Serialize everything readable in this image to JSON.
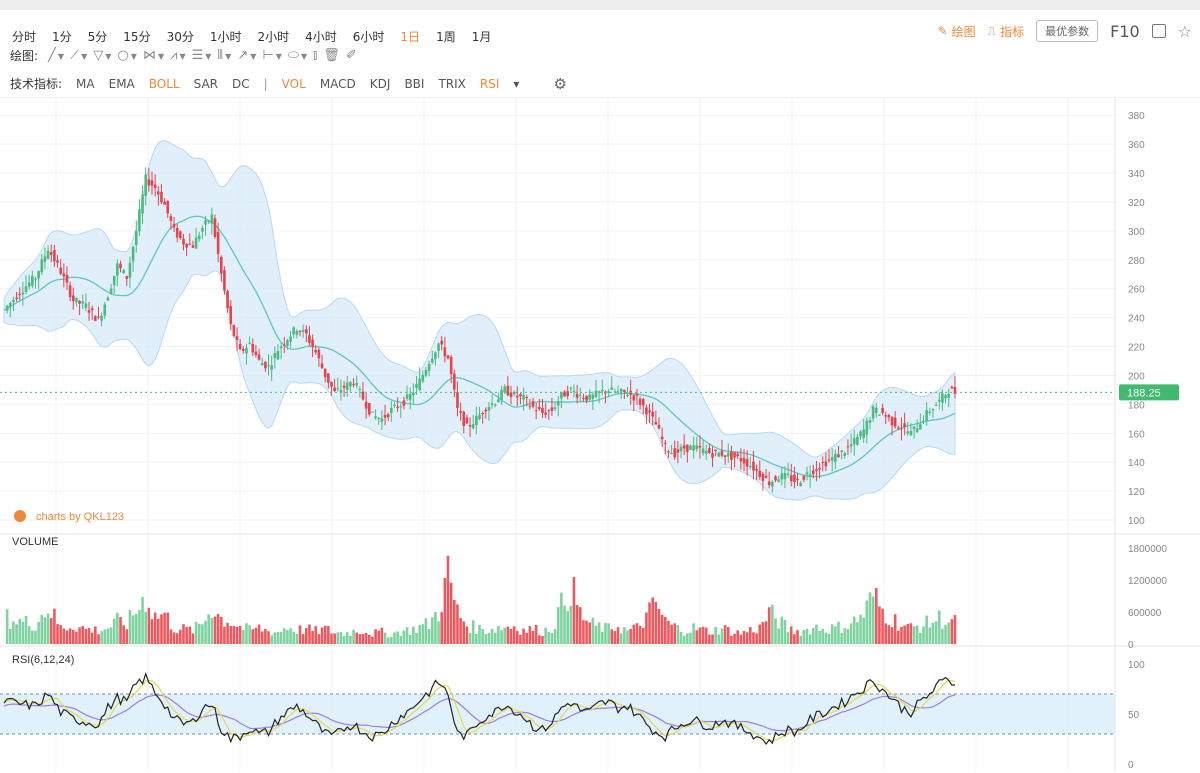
{
  "timeframes": [
    "分时",
    "1分",
    "5分",
    "15分",
    "30分",
    "1小时",
    "2小时",
    "4小时",
    "6小时",
    "1日",
    "1周",
    "1月"
  ],
  "active_timeframe": "1日",
  "right_tools": {
    "draw": "绘图",
    "indicator": "指标",
    "params": "最优参数",
    "f10": "F10"
  },
  "draw_label": "绘图:",
  "draw_tools": [
    "line-tool-icon",
    "ray-tool-icon",
    "channel-tool-icon",
    "circle-tool-icon",
    "fib-tool-icon",
    "pattern-tool-icon",
    "text-tool-icon",
    "grid-tool-icon",
    "arrow-tool-icon",
    "measure-tool-icon",
    "label-tool-icon",
    "bars-tool-icon",
    "delete-tool-icon",
    "brush-tool-icon"
  ],
  "indicator_label": "技术指标:",
  "indicators_main": [
    "MA",
    "EMA",
    "BOLL",
    "SAR",
    "DC"
  ],
  "indicators_sub": [
    "VOL",
    "MACD",
    "KDJ",
    "BBI",
    "TRIX",
    "RSI"
  ],
  "active_indicators": [
    "BOLL",
    "VOL",
    "RSI"
  ],
  "colors": {
    "up": "#4cbb7f",
    "down": "#e8424a",
    "accent": "#f0883a",
    "band": "#d6e9f8",
    "mid": "#5cc7c1"
  },
  "watermark": "charts by QKL123",
  "chart_data": {
    "type": "candlestick",
    "price_axis": {
      "ticks": [
        380,
        360,
        340,
        320,
        300,
        280,
        260,
        240,
        220,
        200,
        180,
        160,
        140,
        120,
        100
      ],
      "ylim": [
        100,
        385
      ]
    },
    "last_price": "188.25",
    "volume_label": "VOLUME",
    "volume_axis": {
      "ticks": [
        "1800000",
        "1200000",
        "600000",
        "0"
      ]
    },
    "rsi_label": "RSI(6,12,24)",
    "rsi_axis": {
      "ticks": [
        "100",
        "50",
        "0"
      ],
      "bands": [
        30,
        70
      ]
    },
    "price_path": [
      [
        0,
        245
      ],
      [
        5,
        258
      ],
      [
        10,
        268
      ],
      [
        14,
        288
      ],
      [
        18,
        272
      ],
      [
        22,
        252
      ],
      [
        26,
        248
      ],
      [
        30,
        238
      ],
      [
        33,
        256
      ],
      [
        36,
        276
      ],
      [
        39,
        268
      ],
      [
        42,
        300
      ],
      [
        45,
        336
      ],
      [
        48,
        330
      ],
      [
        51,
        318
      ],
      [
        54,
        300
      ],
      [
        57,
        292
      ],
      [
        60,
        290
      ],
      [
        63,
        302
      ],
      [
        66,
        310
      ],
      [
        69,
        270
      ],
      [
        72,
        234
      ],
      [
        75,
        216
      ],
      [
        78,
        222
      ],
      [
        81,
        210
      ],
      [
        84,
        206
      ],
      [
        87,
        218
      ],
      [
        90,
        226
      ],
      [
        93,
        233
      ],
      [
        96,
        228
      ],
      [
        99,
        216
      ],
      [
        102,
        200
      ],
      [
        105,
        188
      ],
      [
        108,
        192
      ],
      [
        111,
        196
      ],
      [
        114,
        184
      ],
      [
        117,
        172
      ],
      [
        120,
        170
      ],
      [
        123,
        176
      ],
      [
        126,
        180
      ],
      [
        129,
        186
      ],
      [
        132,
        196
      ],
      [
        135,
        210
      ],
      [
        138,
        222
      ],
      [
        141,
        212
      ],
      [
        144,
        176
      ],
      [
        147,
        164
      ],
      [
        150,
        170
      ],
      [
        153,
        178
      ],
      [
        156,
        182
      ],
      [
        159,
        190
      ],
      [
        162,
        186
      ],
      [
        165,
        184
      ],
      [
        168,
        178
      ],
      [
        171,
        174
      ],
      [
        174,
        176
      ],
      [
        177,
        186
      ],
      [
        180,
        190
      ],
      [
        183,
        186
      ],
      [
        186,
        184
      ],
      [
        189,
        188
      ],
      [
        192,
        190
      ],
      [
        195,
        188
      ],
      [
        198,
        188
      ],
      [
        201,
        184
      ],
      [
        204,
        176
      ],
      [
        207,
        166
      ],
      [
        210,
        150
      ],
      [
        213,
        146
      ],
      [
        216,
        150
      ],
      [
        219,
        150
      ],
      [
        222,
        148
      ],
      [
        225,
        146
      ],
      [
        228,
        146
      ],
      [
        231,
        144
      ],
      [
        234,
        142
      ],
      [
        237,
        138
      ],
      [
        240,
        132
      ],
      [
        243,
        126
      ],
      [
        246,
        130
      ],
      [
        249,
        130
      ],
      [
        252,
        126
      ],
      [
        255,
        132
      ],
      [
        258,
        136
      ],
      [
        261,
        140
      ],
      [
        264,
        144
      ],
      [
        267,
        148
      ],
      [
        270,
        154
      ],
      [
        273,
        162
      ],
      [
        276,
        176
      ],
      [
        279,
        174
      ],
      [
        282,
        168
      ],
      [
        285,
        164
      ],
      [
        288,
        160
      ],
      [
        291,
        168
      ],
      [
        294,
        176
      ],
      [
        297,
        182
      ],
      [
        300,
        190
      ],
      [
        302,
        188.25
      ]
    ],
    "volume_series": [
      [
        0,
        500000
      ],
      [
        5,
        420000
      ],
      [
        10,
        380000
      ],
      [
        14,
        700000
      ],
      [
        18,
        300000
      ],
      [
        22,
        350000
      ],
      [
        26,
        280000
      ],
      [
        30,
        260000
      ],
      [
        33,
        300000
      ],
      [
        36,
        420000
      ],
      [
        39,
        380000
      ],
      [
        42,
        620000
      ],
      [
        45,
        900000
      ],
      [
        48,
        520000
      ],
      [
        51,
        560000
      ],
      [
        54,
        300000
      ],
      [
        57,
        280000
      ],
      [
        60,
        260000
      ],
      [
        63,
        380000
      ],
      [
        66,
        700000
      ],
      [
        69,
        480000
      ],
      [
        72,
        420000
      ],
      [
        75,
        320000
      ],
      [
        78,
        260000
      ],
      [
        81,
        300000
      ],
      [
        84,
        240000
      ],
      [
        87,
        220000
      ],
      [
        90,
        320000
      ],
      [
        93,
        260000
      ],
      [
        96,
        280000
      ],
      [
        99,
        240000
      ],
      [
        102,
        280000
      ],
      [
        105,
        220000
      ],
      [
        108,
        200000
      ],
      [
        111,
        240000
      ],
      [
        114,
        260000
      ],
      [
        117,
        200000
      ],
      [
        120,
        220000
      ],
      [
        123,
        180000
      ],
      [
        126,
        240000
      ],
      [
        129,
        260000
      ],
      [
        132,
        320000
      ],
      [
        135,
        380000
      ],
      [
        138,
        620000
      ],
      [
        141,
        1300000
      ],
      [
        144,
        600000
      ],
      [
        147,
        360000
      ],
      [
        150,
        300000
      ],
      [
        153,
        260000
      ],
      [
        156,
        300000
      ],
      [
        159,
        320000
      ],
      [
        162,
        340000
      ],
      [
        165,
        260000
      ],
      [
        168,
        280000
      ],
      [
        171,
        240000
      ],
      [
        174,
        300000
      ],
      [
        177,
        700000
      ],
      [
        180,
        1100000
      ],
      [
        183,
        560000
      ],
      [
        186,
        380000
      ],
      [
        189,
        320000
      ],
      [
        192,
        280000
      ],
      [
        195,
        340000
      ],
      [
        198,
        240000
      ],
      [
        201,
        300000
      ],
      [
        204,
        500000
      ],
      [
        207,
        760000
      ],
      [
        210,
        420000
      ],
      [
        213,
        320000
      ],
      [
        216,
        260000
      ],
      [
        219,
        300000
      ],
      [
        222,
        260000
      ],
      [
        225,
        240000
      ],
      [
        228,
        300000
      ],
      [
        231,
        240000
      ],
      [
        234,
        200000
      ],
      [
        237,
        260000
      ],
      [
        240,
        300000
      ],
      [
        243,
        580000
      ],
      [
        246,
        440000
      ],
      [
        249,
        280000
      ],
      [
        252,
        240000
      ],
      [
        255,
        260000
      ],
      [
        258,
        320000
      ],
      [
        261,
        280000
      ],
      [
        264,
        300000
      ],
      [
        267,
        340000
      ],
      [
        270,
        420000
      ],
      [
        273,
        560000
      ],
      [
        276,
        900000
      ],
      [
        279,
        620000
      ],
      [
        282,
        480000
      ],
      [
        285,
        360000
      ],
      [
        288,
        300000
      ],
      [
        291,
        340000
      ],
      [
        294,
        400000
      ],
      [
        297,
        480000
      ],
      [
        300,
        420000
      ],
      [
        302,
        400000
      ]
    ],
    "rsi_series": [
      [
        0,
        63
      ],
      [
        5,
        60
      ],
      [
        10,
        58
      ],
      [
        14,
        70
      ],
      [
        18,
        52
      ],
      [
        22,
        45
      ],
      [
        26,
        42
      ],
      [
        30,
        40
      ],
      [
        33,
        56
      ],
      [
        36,
        66
      ],
      [
        39,
        62
      ],
      [
        42,
        80
      ],
      [
        45,
        86
      ],
      [
        48,
        72
      ],
      [
        51,
        60
      ],
      [
        54,
        45
      ],
      [
        57,
        40
      ],
      [
        60,
        42
      ],
      [
        63,
        56
      ],
      [
        66,
        60
      ],
      [
        69,
        35
      ],
      [
        72,
        25
      ],
      [
        75,
        28
      ],
      [
        78,
        36
      ],
      [
        81,
        30
      ],
      [
        84,
        32
      ],
      [
        87,
        44
      ],
      [
        90,
        52
      ],
      [
        93,
        58
      ],
      [
        96,
        50
      ],
      [
        99,
        40
      ],
      [
        102,
        30
      ],
      [
        105,
        28
      ],
      [
        108,
        36
      ],
      [
        111,
        40
      ],
      [
        114,
        32
      ],
      [
        117,
        28
      ],
      [
        120,
        30
      ],
      [
        123,
        40
      ],
      [
        126,
        48
      ],
      [
        129,
        54
      ],
      [
        132,
        64
      ],
      [
        135,
        72
      ],
      [
        138,
        82
      ],
      [
        141,
        70
      ],
      [
        144,
        30
      ],
      [
        147,
        28
      ],
      [
        150,
        40
      ],
      [
        153,
        48
      ],
      [
        156,
        52
      ],
      [
        159,
        60
      ],
      [
        162,
        54
      ],
      [
        165,
        48
      ],
      [
        168,
        38
      ],
      [
        171,
        34
      ],
      [
        174,
        42
      ],
      [
        177,
        56
      ],
      [
        180,
        62
      ],
      [
        183,
        54
      ],
      [
        186,
        52
      ],
      [
        189,
        60
      ],
      [
        192,
        62
      ],
      [
        195,
        56
      ],
      [
        198,
        58
      ],
      [
        201,
        50
      ],
      [
        204,
        40
      ],
      [
        207,
        32
      ],
      [
        210,
        28
      ],
      [
        213,
        36
      ],
      [
        216,
        42
      ],
      [
        219,
        44
      ],
      [
        222,
        40
      ],
      [
        225,
        38
      ],
      [
        228,
        44
      ],
      [
        231,
        40
      ],
      [
        234,
        36
      ],
      [
        237,
        32
      ],
      [
        240,
        26
      ],
      [
        243,
        22
      ],
      [
        246,
        30
      ],
      [
        249,
        34
      ],
      [
        252,
        32
      ],
      [
        255,
        42
      ],
      [
        258,
        48
      ],
      [
        261,
        52
      ],
      [
        264,
        58
      ],
      [
        267,
        62
      ],
      [
        270,
        70
      ],
      [
        273,
        76
      ],
      [
        276,
        84
      ],
      [
        279,
        74
      ],
      [
        282,
        66
      ],
      [
        285,
        56
      ],
      [
        288,
        52
      ],
      [
        291,
        62
      ],
      [
        294,
        70
      ],
      [
        297,
        80
      ],
      [
        300,
        86
      ],
      [
        302,
        78
      ]
    ]
  }
}
